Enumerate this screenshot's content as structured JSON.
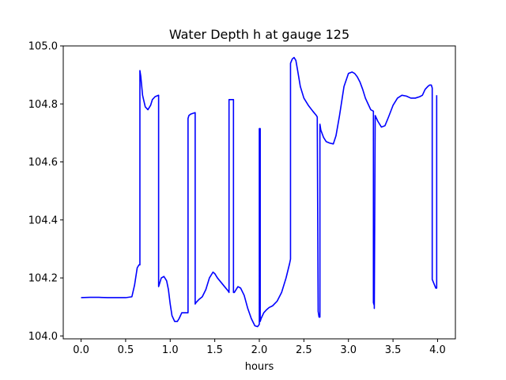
{
  "chart_data": {
    "type": "line",
    "title": "Water Depth h at gauge 125",
    "xlabel": "hours",
    "ylabel": "",
    "xlim": [
      -0.2,
      4.2
    ],
    "ylim": [
      103.99,
      105.0
    ],
    "xticks": [
      0.0,
      0.5,
      1.0,
      1.5,
      2.0,
      2.5,
      3.0,
      3.5,
      4.0
    ],
    "xtick_labels": [
      "0.0",
      "0.5",
      "1.0",
      "1.5",
      "2.0",
      "2.5",
      "3.0",
      "3.5",
      "4.0"
    ],
    "yticks": [
      104.0,
      104.2,
      104.4,
      104.6,
      104.8,
      105.0
    ],
    "ytick_labels": [
      "104.0",
      "104.2",
      "104.4",
      "104.6",
      "104.8",
      "105.0"
    ],
    "grid": false,
    "legend": "none",
    "line_color": "#0000ff",
    "series": [
      {
        "x": [
          0.0,
          0.1,
          0.2,
          0.3,
          0.4,
          0.5,
          0.57,
          0.6,
          0.63,
          0.65,
          0.66,
          0.66,
          0.67,
          0.69,
          0.72,
          0.75,
          0.78,
          0.8,
          0.83,
          0.87,
          0.87,
          0.88,
          0.9,
          0.93,
          0.96,
          0.98,
          1.0,
          1.02,
          1.05,
          1.08,
          1.1,
          1.13,
          1.16,
          1.19,
          1.2,
          1.2,
          1.21,
          1.23,
          1.25,
          1.28,
          1.28,
          1.29,
          1.32,
          1.36,
          1.4,
          1.44,
          1.48,
          1.5,
          1.53,
          1.57,
          1.61,
          1.65,
          1.66,
          1.66,
          1.67,
          1.71,
          1.71,
          1.72,
          1.74,
          1.76,
          1.79,
          1.83,
          1.87,
          1.91,
          1.95,
          1.98,
          2.0,
          2.0,
          2.01,
          2.01,
          2.02,
          2.05,
          2.08,
          2.11,
          2.15,
          2.2,
          2.25,
          2.3,
          2.34,
          2.35,
          2.35,
          2.37,
          2.39,
          2.41,
          2.43,
          2.46,
          2.5,
          2.55,
          2.6,
          2.64,
          2.65,
          2.66,
          2.66,
          2.67,
          2.68,
          2.68,
          2.69,
          2.72,
          2.75,
          2.79,
          2.83,
          2.86,
          2.9,
          2.95,
          3.0,
          3.04,
          3.07,
          3.1,
          3.13,
          3.16,
          3.19,
          3.22,
          3.25,
          3.28,
          3.28,
          3.29,
          3.29,
          3.3,
          3.33,
          3.37,
          3.41,
          3.45,
          3.5,
          3.55,
          3.6,
          3.65,
          3.7,
          3.75,
          3.8,
          3.83,
          3.86,
          3.89,
          3.91,
          3.93,
          3.94,
          3.94,
          3.96,
          3.98,
          3.99,
          3.99
        ],
        "y": [
          104.132,
          104.133,
          104.133,
          104.132,
          104.132,
          104.132,
          104.135,
          104.175,
          104.235,
          104.245,
          104.245,
          104.915,
          104.895,
          104.83,
          104.79,
          104.78,
          104.795,
          104.815,
          104.825,
          104.83,
          104.17,
          104.18,
          104.2,
          104.205,
          104.19,
          104.16,
          104.11,
          104.07,
          104.05,
          104.05,
          104.06,
          104.08,
          104.08,
          104.08,
          104.08,
          104.75,
          104.76,
          104.765,
          104.767,
          104.77,
          104.11,
          104.115,
          104.125,
          104.135,
          104.16,
          104.2,
          104.22,
          104.215,
          104.2,
          104.185,
          104.17,
          104.155,
          104.15,
          104.815,
          104.815,
          104.815,
          104.15,
          104.15,
          104.16,
          104.17,
          104.165,
          104.14,
          104.095,
          104.06,
          104.035,
          104.032,
          104.04,
          104.715,
          104.715,
          104.05,
          104.06,
          104.08,
          104.09,
          104.098,
          104.104,
          104.12,
          104.15,
          104.2,
          104.25,
          104.265,
          104.94,
          104.955,
          104.96,
          104.95,
          104.915,
          104.86,
          104.82,
          104.795,
          104.775,
          104.76,
          104.755,
          104.09,
          104.085,
          104.065,
          104.065,
          104.73,
          104.71,
          104.685,
          104.67,
          104.665,
          104.662,
          104.69,
          104.76,
          104.86,
          104.905,
          104.91,
          104.905,
          104.893,
          104.875,
          104.85,
          104.82,
          104.8,
          104.78,
          104.775,
          104.115,
          104.105,
          104.095,
          104.76,
          104.74,
          104.72,
          104.725,
          104.755,
          104.795,
          104.82,
          104.83,
          104.827,
          104.82,
          104.82,
          104.825,
          104.83,
          104.85,
          104.86,
          104.865,
          104.865,
          104.855,
          104.195,
          104.18,
          104.165,
          104.165,
          104.83
        ]
      }
    ]
  }
}
